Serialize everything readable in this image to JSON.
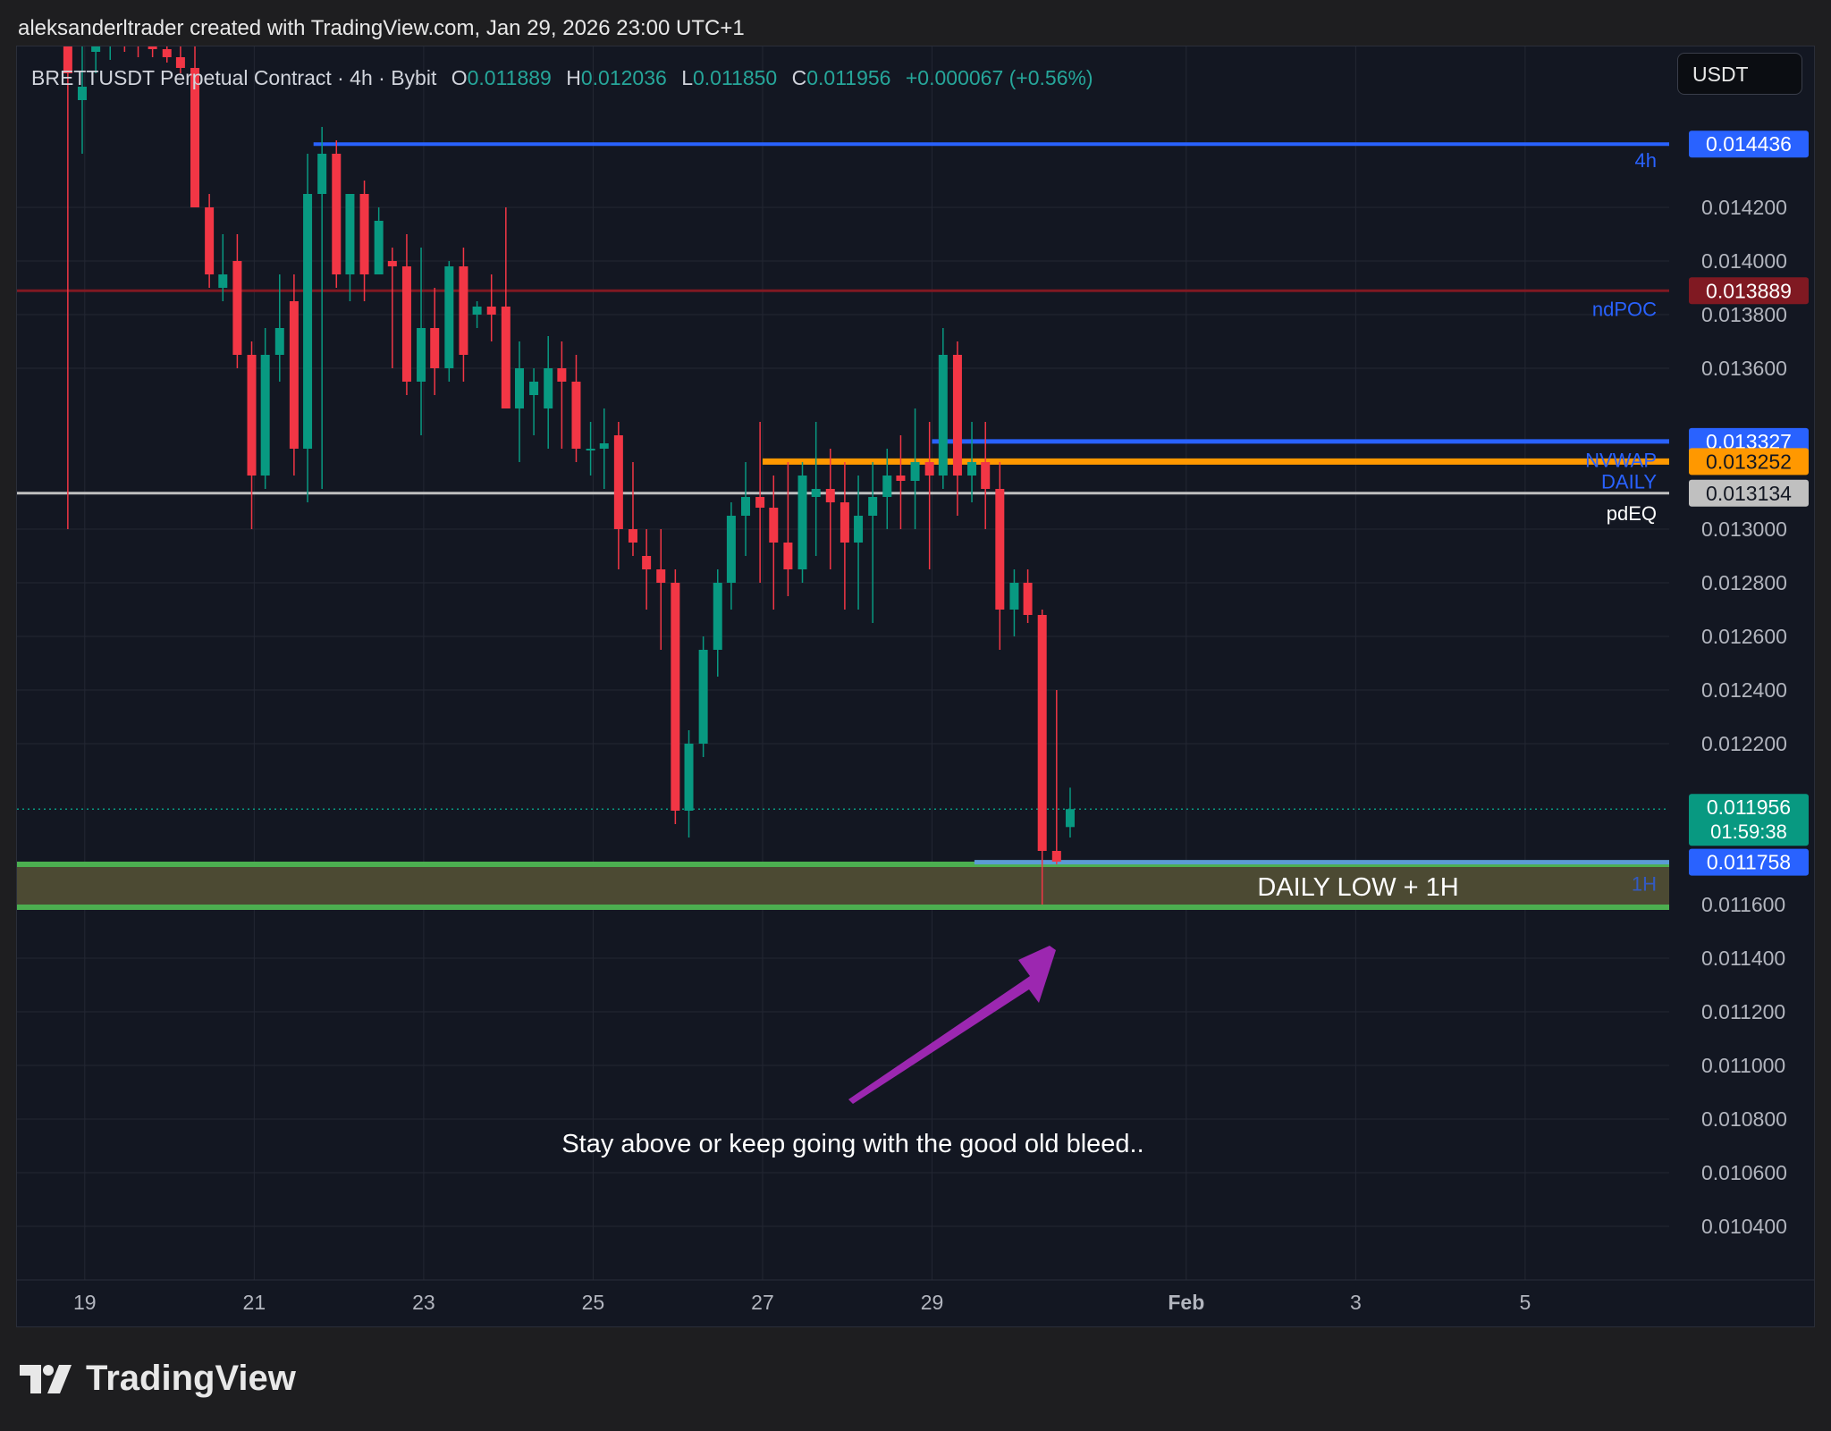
{
  "header": {
    "credit": "aleksanderltrader created with TradingView.com, Jan 29, 2026 23:00 UTC+1"
  },
  "legend": {
    "symbol": "BRETTUSDT Perpetual Contract · 4h · Bybit",
    "o_label": "O",
    "o_value": "0.011889",
    "h_label": "H",
    "h_value": "0.012036",
    "l_label": "L",
    "l_value": "0.011850",
    "c_label": "C",
    "c_value": "0.011956",
    "change": "+0.000067 (+0.56%)"
  },
  "currency": "USDT",
  "price_axis": {
    "ticks": [
      "0.014200",
      "0.014000",
      "0.013800",
      "0.013600",
      "0.013000",
      "0.012800",
      "0.012600",
      "0.012400",
      "0.012200",
      "0.011600",
      "0.011400",
      "0.011200",
      "0.011000",
      "0.010800",
      "0.010600",
      "0.010400"
    ]
  },
  "price_labels": [
    {
      "text": "0.014436",
      "bg": "#2962ff",
      "fg": "#ffffff"
    },
    {
      "text": "0.013889",
      "bg": "#801922",
      "fg": "#ffffff"
    },
    {
      "text": "0.013327",
      "bg": "#2962ff",
      "fg": "#ffffff"
    },
    {
      "text": "0.013252",
      "bg": "#ff9800",
      "fg": "#131722"
    },
    {
      "text": "0.013134",
      "bg": "#c0c0c0",
      "fg": "#131722"
    },
    {
      "text": "0.011956",
      "bg": "#089981",
      "fg": "#ffffff",
      "sub": "01:59:38"
    },
    {
      "text": "0.011758",
      "bg": "#2962ff",
      "fg": "#ffffff"
    }
  ],
  "level_tags": {
    "four_h": "4h",
    "ndpoc": "ndPOC",
    "nvwap": "NVWAP",
    "daily": "DAILY",
    "pdeq": "pdEQ",
    "one_h": "1H"
  },
  "time_axis": {
    "labels": [
      "19",
      "21",
      "23",
      "25",
      "27",
      "29",
      "Feb",
      "3",
      "5"
    ]
  },
  "annotations": {
    "zone_label": "DAILY LOW + 1H",
    "comment": "Stay above or keep going with the good old bleed.."
  },
  "footer": {
    "brand": "TradingView"
  },
  "colors": {
    "up": "#089981",
    "down": "#f23645",
    "background": "#131722",
    "grid": "#232733",
    "arrow": "#9c27b0",
    "zone": "#4c4a33",
    "zone_line": "#4caf50"
  },
  "chart_data": {
    "type": "candlestick",
    "symbol": "BRETTUSDT",
    "interval": "4h",
    "y_range": [
      0.0102,
      0.0148
    ],
    "x_range": [
      18.2,
      37.7
    ],
    "horizontal_levels": [
      {
        "name": "4h",
        "price": 0.014436,
        "from": 21.7
      },
      {
        "name": "ndPOC",
        "price": 0.013889,
        "from": 18.2
      },
      {
        "name": "NVWAP",
        "price": 0.013327,
        "from": 29.0
      },
      {
        "name": "DAILY",
        "price": 0.013252,
        "from": 27.0
      },
      {
        "name": "pdEQ",
        "price": 0.013134,
        "from": 18.2
      },
      {
        "name": "1H",
        "price": 0.011758,
        "from": 29.5
      }
    ],
    "zone": {
      "label": "DAILY LOW + 1H",
      "top": 0.01175,
      "bottom": 0.01159,
      "from": 18.2
    },
    "candles": [
      {
        "t": 18.8,
        "o": 0.0149,
        "h": 0.015,
        "l": 0.013,
        "c": 0.0147
      },
      {
        "t": 18.97,
        "o": 0.0146,
        "h": 0.0149,
        "l": 0.0144,
        "c": 0.01465
      },
      {
        "t": 19.13,
        "o": 0.01478,
        "h": 0.01485,
        "l": 0.0147,
        "c": 0.01481
      },
      {
        "t": 19.3,
        "o": 0.0148,
        "h": 0.01485,
        "l": 0.01475,
        "c": 0.01482
      },
      {
        "t": 19.47,
        "o": 0.01482,
        "h": 0.01484,
        "l": 0.01478,
        "c": 0.01481
      },
      {
        "t": 19.63,
        "o": 0.01481,
        "h": 0.01484,
        "l": 0.01476,
        "c": 0.0148
      },
      {
        "t": 19.8,
        "o": 0.0148,
        "h": 0.01484,
        "l": 0.01476,
        "c": 0.01479
      },
      {
        "t": 19.97,
        "o": 0.01479,
        "h": 0.01482,
        "l": 0.01474,
        "c": 0.01476
      },
      {
        "t": 20.13,
        "o": 0.01476,
        "h": 0.0148,
        "l": 0.0147,
        "c": 0.01472
      },
      {
        "t": 20.3,
        "o": 0.01472,
        "h": 0.0148,
        "l": 0.0142,
        "c": 0.0142
      },
      {
        "t": 20.47,
        "o": 0.0142,
        "h": 0.01425,
        "l": 0.0139,
        "c": 0.01395
      },
      {
        "t": 20.63,
        "o": 0.0139,
        "h": 0.0141,
        "l": 0.01385,
        "c": 0.01395
      },
      {
        "t": 20.8,
        "o": 0.014,
        "h": 0.0141,
        "l": 0.0136,
        "c": 0.01365
      },
      {
        "t": 20.97,
        "o": 0.01365,
        "h": 0.0137,
        "l": 0.013,
        "c": 0.0132
      },
      {
        "t": 21.13,
        "o": 0.0132,
        "h": 0.01375,
        "l": 0.01315,
        "c": 0.01365
      },
      {
        "t": 21.3,
        "o": 0.01365,
        "h": 0.01395,
        "l": 0.01355,
        "c": 0.01375
      },
      {
        "t": 21.47,
        "o": 0.01385,
        "h": 0.01395,
        "l": 0.0132,
        "c": 0.0133
      },
      {
        "t": 21.63,
        "o": 0.0133,
        "h": 0.0144,
        "l": 0.0131,
        "c": 0.01425
      },
      {
        "t": 21.8,
        "o": 0.01425,
        "h": 0.0145,
        "l": 0.01315,
        "c": 0.0144
      },
      {
        "t": 21.97,
        "o": 0.0144,
        "h": 0.01445,
        "l": 0.0139,
        "c": 0.01395
      },
      {
        "t": 22.13,
        "o": 0.01395,
        "h": 0.01425,
        "l": 0.01385,
        "c": 0.01425
      },
      {
        "t": 22.3,
        "o": 0.01425,
        "h": 0.0143,
        "l": 0.01385,
        "c": 0.01395
      },
      {
        "t": 22.47,
        "o": 0.01395,
        "h": 0.0142,
        "l": 0.01395,
        "c": 0.01415
      },
      {
        "t": 22.63,
        "o": 0.014,
        "h": 0.01405,
        "l": 0.0136,
        "c": 0.01398
      },
      {
        "t": 22.8,
        "o": 0.01398,
        "h": 0.0141,
        "l": 0.0135,
        "c": 0.01355
      },
      {
        "t": 22.97,
        "o": 0.01355,
        "h": 0.01405,
        "l": 0.01335,
        "c": 0.01375
      },
      {
        "t": 23.13,
        "o": 0.01375,
        "h": 0.0139,
        "l": 0.0135,
        "c": 0.0136
      },
      {
        "t": 23.3,
        "o": 0.0136,
        "h": 0.014,
        "l": 0.01355,
        "c": 0.01398
      },
      {
        "t": 23.47,
        "o": 0.01398,
        "h": 0.01405,
        "l": 0.01355,
        "c": 0.01365
      },
      {
        "t": 23.63,
        "o": 0.0138,
        "h": 0.01385,
        "l": 0.01375,
        "c": 0.01383
      },
      {
        "t": 23.8,
        "o": 0.01383,
        "h": 0.01395,
        "l": 0.0137,
        "c": 0.0138
      },
      {
        "t": 23.97,
        "o": 0.01383,
        "h": 0.0142,
        "l": 0.01345,
        "c": 0.01345
      },
      {
        "t": 24.13,
        "o": 0.01345,
        "h": 0.0137,
        "l": 0.01325,
        "c": 0.0136
      },
      {
        "t": 24.3,
        "o": 0.0135,
        "h": 0.0136,
        "l": 0.01335,
        "c": 0.01355
      },
      {
        "t": 24.47,
        "o": 0.01345,
        "h": 0.01372,
        "l": 0.0133,
        "c": 0.0136
      },
      {
        "t": 24.63,
        "o": 0.0136,
        "h": 0.0137,
        "l": 0.0133,
        "c": 0.01355
      },
      {
        "t": 24.8,
        "o": 0.01355,
        "h": 0.01365,
        "l": 0.01325,
        "c": 0.0133
      },
      {
        "t": 24.97,
        "o": 0.0133,
        "h": 0.0134,
        "l": 0.0132,
        "c": 0.0133
      },
      {
        "t": 25.13,
        "o": 0.0133,
        "h": 0.01345,
        "l": 0.01315,
        "c": 0.01332
      },
      {
        "t": 25.3,
        "o": 0.01335,
        "h": 0.0134,
        "l": 0.01285,
        "c": 0.013
      },
      {
        "t": 25.47,
        "o": 0.013,
        "h": 0.01325,
        "l": 0.0129,
        "c": 0.01295
      },
      {
        "t": 25.63,
        "o": 0.0129,
        "h": 0.013,
        "l": 0.0127,
        "c": 0.01285
      },
      {
        "t": 25.8,
        "o": 0.01285,
        "h": 0.013,
        "l": 0.01255,
        "c": 0.0128
      },
      {
        "t": 25.97,
        "o": 0.0128,
        "h": 0.01285,
        "l": 0.0119,
        "c": 0.01195
      },
      {
        "t": 26.13,
        "o": 0.01195,
        "h": 0.01225,
        "l": 0.01185,
        "c": 0.0122
      },
      {
        "t": 26.3,
        "o": 0.0122,
        "h": 0.0126,
        "l": 0.01215,
        "c": 0.01255
      },
      {
        "t": 26.47,
        "o": 0.01255,
        "h": 0.01285,
        "l": 0.01245,
        "c": 0.0128
      },
      {
        "t": 26.63,
        "o": 0.0128,
        "h": 0.0131,
        "l": 0.0127,
        "c": 0.01305
      },
      {
        "t": 26.8,
        "o": 0.01305,
        "h": 0.01325,
        "l": 0.0129,
        "c": 0.01312
      },
      {
        "t": 26.97,
        "o": 0.01312,
        "h": 0.0134,
        "l": 0.0128,
        "c": 0.01308
      },
      {
        "t": 27.13,
        "o": 0.01308,
        "h": 0.0132,
        "l": 0.0127,
        "c": 0.01295
      },
      {
        "t": 27.3,
        "o": 0.01295,
        "h": 0.01325,
        "l": 0.01275,
        "c": 0.01285
      },
      {
        "t": 27.47,
        "o": 0.01285,
        "h": 0.01325,
        "l": 0.0128,
        "c": 0.0132
      },
      {
        "t": 27.63,
        "o": 0.01312,
        "h": 0.0134,
        "l": 0.0129,
        "c": 0.01315
      },
      {
        "t": 27.8,
        "o": 0.01315,
        "h": 0.0133,
        "l": 0.01285,
        "c": 0.0131
      },
      {
        "t": 27.97,
        "o": 0.0131,
        "h": 0.01325,
        "l": 0.0127,
        "c": 0.01295
      },
      {
        "t": 28.13,
        "o": 0.01295,
        "h": 0.0132,
        "l": 0.0127,
        "c": 0.01305
      },
      {
        "t": 28.3,
        "o": 0.01305,
        "h": 0.01325,
        "l": 0.01265,
        "c": 0.01312
      },
      {
        "t": 28.47,
        "o": 0.01312,
        "h": 0.0133,
        "l": 0.013,
        "c": 0.0132
      },
      {
        "t": 28.63,
        "o": 0.0132,
        "h": 0.01335,
        "l": 0.013,
        "c": 0.01318
      },
      {
        "t": 28.8,
        "o": 0.01318,
        "h": 0.01345,
        "l": 0.013,
        "c": 0.01325
      },
      {
        "t": 28.97,
        "o": 0.01325,
        "h": 0.0134,
        "l": 0.01285,
        "c": 0.0132
      },
      {
        "t": 29.13,
        "o": 0.0132,
        "h": 0.01375,
        "l": 0.01315,
        "c": 0.01365
      },
      {
        "t": 29.3,
        "o": 0.01365,
        "h": 0.0137,
        "l": 0.01305,
        "c": 0.0132
      },
      {
        "t": 29.47,
        "o": 0.0132,
        "h": 0.0134,
        "l": 0.0131,
        "c": 0.01325
      },
      {
        "t": 29.63,
        "o": 0.01325,
        "h": 0.0134,
        "l": 0.013,
        "c": 0.01315
      },
      {
        "t": 29.8,
        "o": 0.01315,
        "h": 0.01325,
        "l": 0.01255,
        "c": 0.0127
      },
      {
        "t": 29.97,
        "o": 0.0127,
        "h": 0.01285,
        "l": 0.0126,
        "c": 0.0128
      },
      {
        "t": 30.13,
        "o": 0.0128,
        "h": 0.01285,
        "l": 0.01265,
        "c": 0.01268
      },
      {
        "t": 30.3,
        "o": 0.01268,
        "h": 0.0127,
        "l": 0.0116,
        "c": 0.0118
      },
      {
        "t": 30.47,
        "o": 0.0118,
        "h": 0.0124,
        "l": 0.01175,
        "c": 0.01176
      },
      {
        "t": 30.63,
        "o": 0.011889,
        "h": 0.012036,
        "l": 0.01185,
        "c": 0.011956
      }
    ]
  }
}
